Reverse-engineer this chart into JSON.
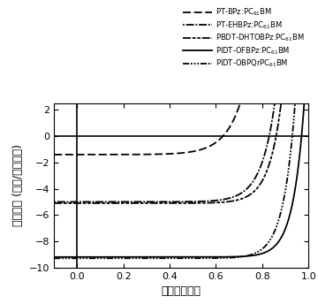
{
  "title": "",
  "xlabel": "电压（伏特）",
  "ylabel": "电流密度 (毫安/平方厘米)",
  "xlim": [
    -0.1,
    1.0
  ],
  "ylim": [
    -10,
    2.5
  ],
  "yticks": [
    -10,
    -8,
    -6,
    -4,
    -2,
    0,
    2
  ],
  "xticks": [
    0.0,
    0.2,
    0.4,
    0.6,
    0.8,
    1.0
  ],
  "legend_entries": [
    "PT-BPz:PC$_{61}$BM",
    "PT-EHBPz:PC$_{61}$BM",
    "PBDT-DHTOBPz:PC$_{61}$BM",
    "PIDT-OFBPz:PC$_{61}$BM",
    "PIDT-OBPQrPC$_{61}$BM"
  ],
  "background": "#ffffff",
  "line_color": "#000000",
  "curves": [
    {
      "Jsc": 1.4,
      "Voc": 0.63,
      "n": 2.8
    },
    {
      "Jsc": 5.0,
      "Voc": 0.83,
      "n": 2.3
    },
    {
      "Jsc": 5.1,
      "Voc": 0.86,
      "n": 2.1
    },
    {
      "Jsc": 9.2,
      "Voc": 0.97,
      "n": 1.85
    },
    {
      "Jsc": 9.3,
      "Voc": 0.93,
      "n": 1.95
    }
  ]
}
